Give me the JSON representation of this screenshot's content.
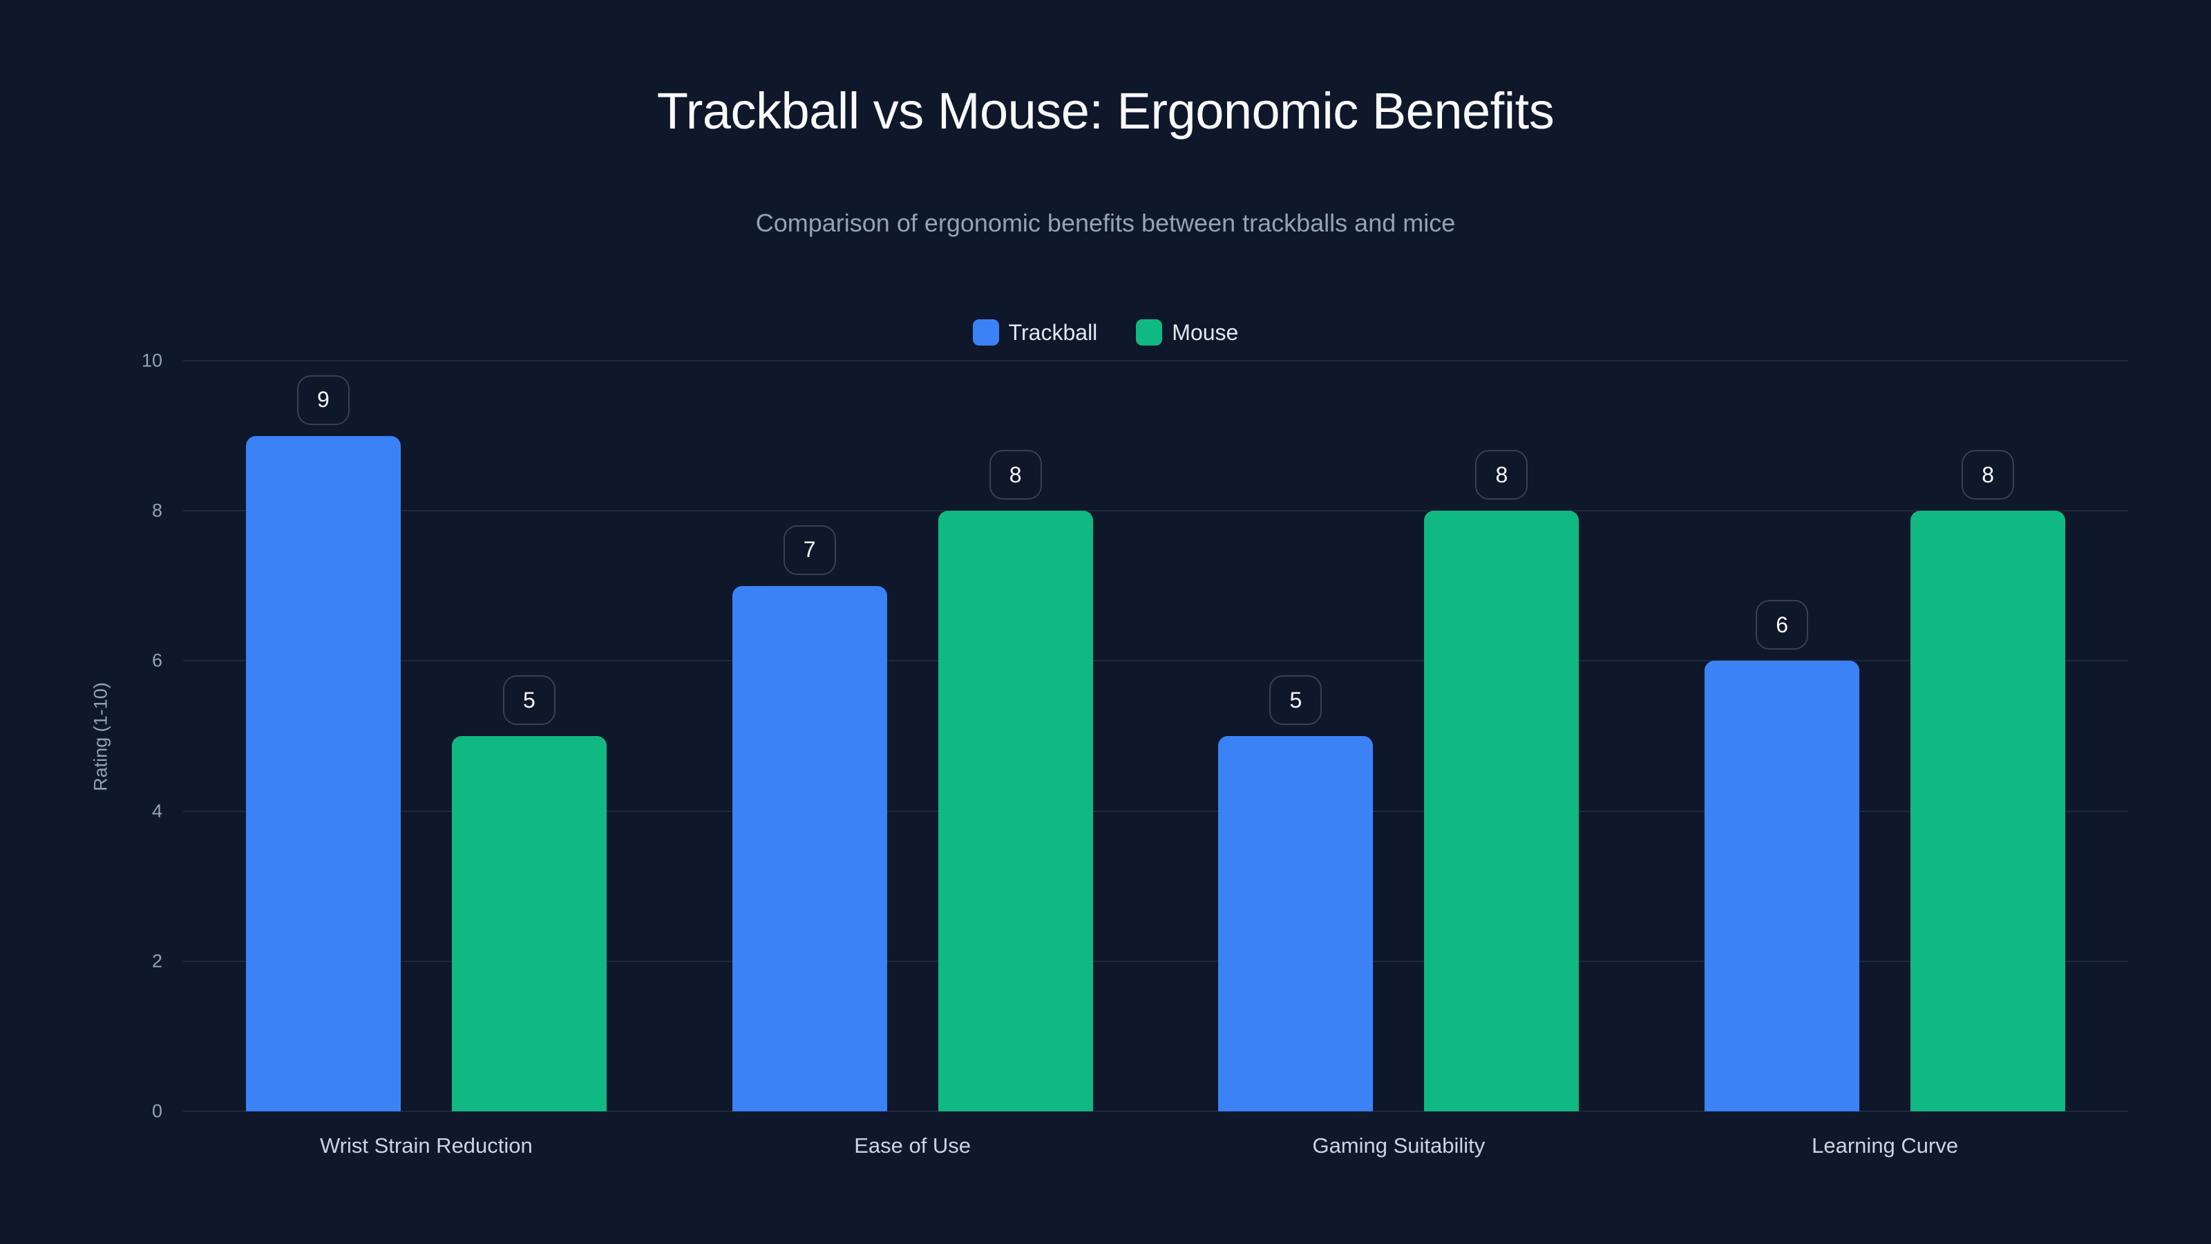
{
  "title": "Trackball vs Mouse: Ergonomic Benefits",
  "subtitle": "Comparison of ergonomic benefits between trackballs and mice",
  "legend": [
    {
      "label": "Trackball",
      "color": "#3b82f6"
    },
    {
      "label": "Mouse",
      "color": "#10b981"
    }
  ],
  "y_axis": {
    "label": "Rating (1-10)",
    "ticks": [
      "0",
      "2",
      "4",
      "6",
      "8",
      "10"
    ]
  },
  "chart_data": {
    "type": "bar",
    "title": "Trackball vs Mouse: Ergonomic Benefits",
    "subtitle": "Comparison of ergonomic benefits between trackballs and mice",
    "categories": [
      "Wrist Strain Reduction",
      "Ease of Use",
      "Gaming Suitability",
      "Learning Curve"
    ],
    "series": [
      {
        "name": "Trackball",
        "color": "#3b82f6",
        "values": [
          9,
          7,
          5,
          6
        ]
      },
      {
        "name": "Mouse",
        "color": "#10b981",
        "values": [
          5,
          8,
          8,
          8
        ]
      }
    ],
    "xlabel": "",
    "ylabel": "Rating (1-10)",
    "ylim": [
      0,
      10
    ],
    "yticks": [
      0,
      2,
      4,
      6,
      8,
      10
    ],
    "grid": true,
    "legend_position": "top",
    "data_labels": true
  }
}
